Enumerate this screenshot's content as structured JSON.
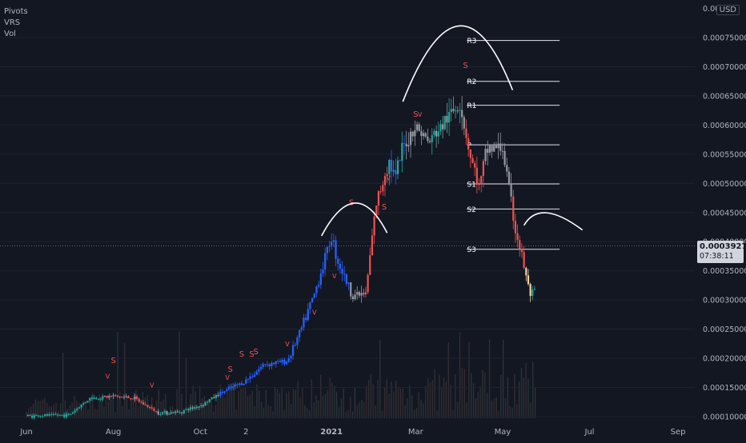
{
  "legend": {
    "items": [
      "Pivots",
      "VRS",
      "Vol"
    ]
  },
  "currency": "USD",
  "last_price": {
    "value": "0.00039275",
    "countdown": "07:38:11"
  },
  "chart_data": {
    "type": "line",
    "x": [
      "2020-06-01",
      "2020-07-01",
      "2020-07-15",
      "2020-08-01",
      "2020-08-15",
      "2020-09-01",
      "2020-09-15",
      "2020-10-01",
      "2020-10-15",
      "2020-11-01",
      "2020-11-15",
      "2020-12-01",
      "2020-12-10",
      "2020-12-20",
      "2021-01-01",
      "2021-01-05",
      "2021-01-15",
      "2021-01-25",
      "2021-02-01",
      "2021-02-10",
      "2021-02-15",
      "2021-02-20",
      "2021-03-01",
      "2021-03-10",
      "2021-03-20",
      "2021-04-01",
      "2021-04-08",
      "2021-04-15",
      "2021-04-20",
      "2021-05-01",
      "2021-05-10",
      "2021-05-15",
      "2021-05-20"
    ],
    "series": [
      {
        "values": [
          0.000101,
          0.000103,
          0.000131,
          0.000135,
          0.000132,
          0.000107,
          0.000107,
          0.000119,
          0.00014,
          0.00016,
          0.00019,
          0.000195,
          0.000245,
          0.00031,
          0.00041,
          0.00037,
          0.00031,
          0.00031,
          0.00046,
          0.00054,
          0.00051,
          0.00056,
          0.0006,
          0.00057,
          0.0006,
          0.00064,
          0.00055,
          0.00049,
          0.00056,
          0.00056,
          0.00042,
          0.00037,
          0.00031
        ]
      }
    ],
    "ylim": [
      0.0001,
      0.00079
    ],
    "y_ticks": [
      "0.00075000",
      "0.00070000",
      "0.00065000",
      "0.00060000",
      "0.00055000",
      "0.00050000",
      "0.00045000",
      "0.00040000",
      "0.00035000",
      "0.00030000",
      "0.00025000",
      "0.00020000",
      "0.00015000",
      "0.00010000"
    ],
    "top_tick_partial": "0.00",
    "x_ticks": [
      {
        "label": "Jun",
        "date": "2020-06-01"
      },
      {
        "label": "Aug",
        "date": "2020-08-01"
      },
      {
        "label": "Oct",
        "date": "2020-10-01"
      },
      {
        "label": "2",
        "date": "2020-11-02"
      },
      {
        "label": "2021",
        "date": "2021-01-01"
      },
      {
        "label": "Mar",
        "date": "2021-03-01"
      },
      {
        "label": "May",
        "date": "2021-05-01"
      },
      {
        "label": "Jul",
        "date": "2021-07-01"
      },
      {
        "label": "Sep",
        "date": "2021-09-01"
      }
    ],
    "pivot_levels": [
      {
        "label": "R3",
        "value": 0.000745
      },
      {
        "label": "R2",
        "value": 0.000675
      },
      {
        "label": "R1",
        "value": 0.000634
      },
      {
        "label": "P",
        "value": 0.000566
      },
      {
        "label": "S1",
        "value": 0.000499
      },
      {
        "label": "S2",
        "value": 0.000456
      },
      {
        "label": "S3",
        "value": 0.000387
      }
    ],
    "last_price_value": 0.00039275,
    "signals": [
      {
        "text": "V",
        "date": "2020-07-28",
        "value": 0.000165
      },
      {
        "text": "S",
        "date": "2020-08-01",
        "value": 0.000192
      },
      {
        "text": "V",
        "date": "2020-08-28",
        "value": 0.00015
      },
      {
        "text": "V",
        "date": "2020-10-20",
        "value": 0.000163
      },
      {
        "text": "S",
        "date": "2020-10-22",
        "value": 0.000177
      },
      {
        "text": "S",
        "date": "2020-10-30",
        "value": 0.000203
      },
      {
        "text": "S",
        "date": "2020-11-06",
        "value": 0.000203
      },
      {
        "text": "S",
        "date": "2020-11-09",
        "value": 0.000207
      },
      {
        "text": "V",
        "date": "2020-12-01",
        "value": 0.000221
      },
      {
        "text": "V",
        "date": "2020-12-20",
        "value": 0.000275
      },
      {
        "text": "V",
        "date": "2021-01-03",
        "value": 0.000337
      },
      {
        "text": "S",
        "date": "2021-01-15",
        "value": 0.000463
      },
      {
        "text": "S",
        "date": "2021-02-07",
        "value": 0.000455
      },
      {
        "text": "V",
        "date": "2021-02-10",
        "value": 0.000505
      },
      {
        "text": "S",
        "date": "2021-03-01",
        "value": 0.000614
      },
      {
        "text": "V",
        "date": "2021-03-04",
        "value": 0.000614
      },
      {
        "text": "S",
        "date": "2021-04-05",
        "value": 0.000698
      }
    ]
  }
}
